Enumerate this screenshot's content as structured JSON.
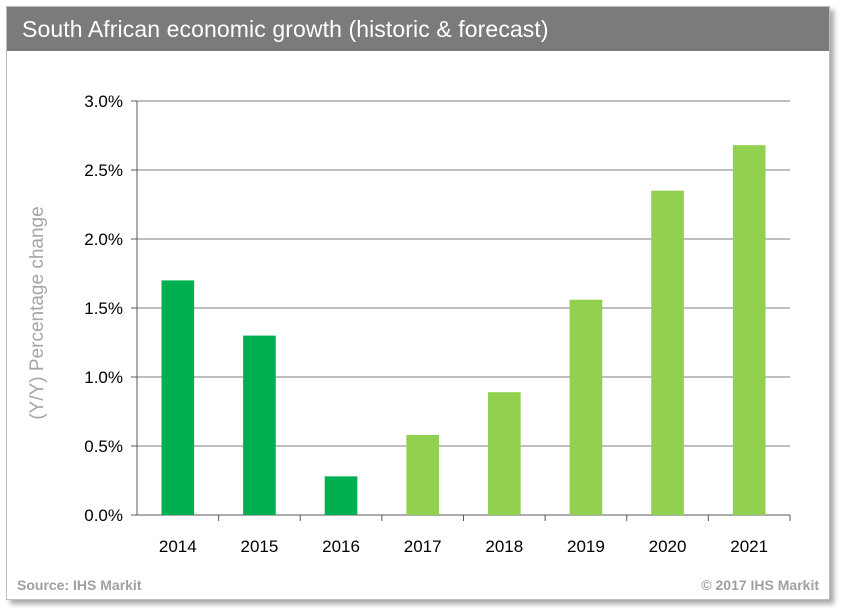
{
  "chart_data": {
    "type": "bar",
    "title": "South African economic growth (historic & forecast)",
    "ylabel": "(Y/Y) Percentage change",
    "xlabel": "",
    "ylim": [
      0,
      3.0
    ],
    "yticks": [
      "0.0%",
      "0.5%",
      "1.0%",
      "1.5%",
      "2.0%",
      "2.5%",
      "3.0%"
    ],
    "categories": [
      "2014",
      "2015",
      "2016",
      "2017",
      "2018",
      "2019",
      "2020",
      "2021"
    ],
    "values": [
      1.7,
      1.3,
      0.28,
      0.58,
      0.89,
      1.56,
      2.35,
      2.68
    ],
    "bar_colors": [
      "#00b050",
      "#00b050",
      "#00b050",
      "#92d050",
      "#92d050",
      "#92d050",
      "#92d050",
      "#92d050"
    ],
    "grid": true,
    "gridline_color": "#7f7f7f"
  },
  "footer": {
    "source": "Source: IHS Markit",
    "copyright": "© 2017 IHS Markit"
  }
}
